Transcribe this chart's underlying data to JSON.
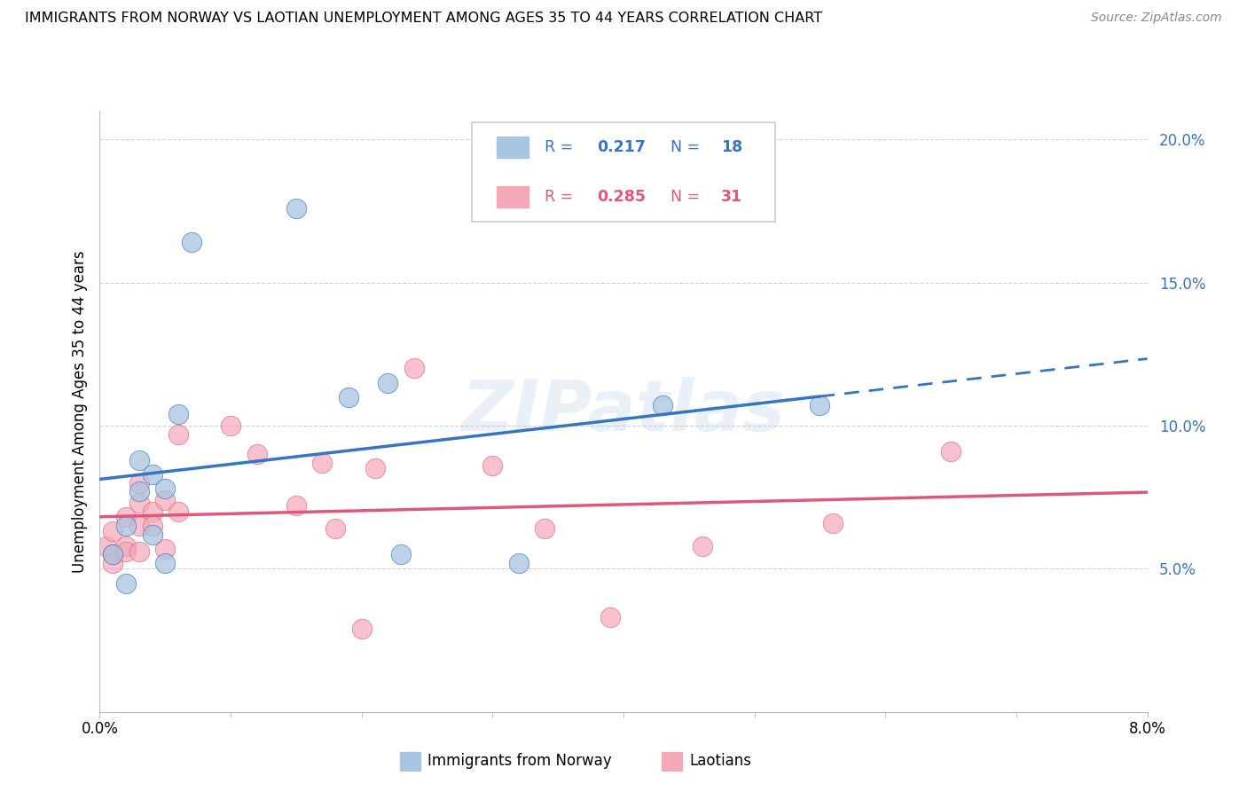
{
  "title": "IMMIGRANTS FROM NORWAY VS LAOTIAN UNEMPLOYMENT AMONG AGES 35 TO 44 YEARS CORRELATION CHART",
  "source": "Source: ZipAtlas.com",
  "ylabel": "Unemployment Among Ages 35 to 44 years",
  "xlim": [
    0.0,
    0.08
  ],
  "ylim": [
    0.0,
    0.21
  ],
  "yticks": [
    0.05,
    0.1,
    0.15,
    0.2
  ],
  "ytick_labels": [
    "5.0%",
    "10.0%",
    "15.0%",
    "20.0%"
  ],
  "norway_label": "Immigrants from Norway",
  "laotian_label": "Laotians",
  "norway_R": "0.217",
  "norway_N": "18",
  "laotian_R": "0.285",
  "laotian_N": "31",
  "norway_color": "#a8c4e0",
  "laotian_color": "#f4a8b8",
  "norway_line_color": "#3575c2",
  "laotian_line_color": "#e05878",
  "norway_scatter_x": [
    0.001,
    0.002,
    0.002,
    0.003,
    0.003,
    0.004,
    0.004,
    0.005,
    0.005,
    0.006,
    0.007,
    0.015,
    0.019,
    0.022,
    0.023,
    0.032,
    0.043,
    0.055
  ],
  "norway_scatter_y": [
    0.055,
    0.065,
    0.045,
    0.077,
    0.088,
    0.062,
    0.083,
    0.078,
    0.052,
    0.104,
    0.164,
    0.176,
    0.11,
    0.115,
    0.055,
    0.052,
    0.107,
    0.107
  ],
  "laotian_scatter_x": [
    0.0005,
    0.001,
    0.001,
    0.001,
    0.002,
    0.002,
    0.002,
    0.003,
    0.003,
    0.003,
    0.003,
    0.004,
    0.004,
    0.005,
    0.005,
    0.006,
    0.006,
    0.01,
    0.012,
    0.015,
    0.017,
    0.018,
    0.02,
    0.021,
    0.024,
    0.03,
    0.034,
    0.039,
    0.046,
    0.056,
    0.065
  ],
  "laotian_scatter_y": [
    0.058,
    0.055,
    0.052,
    0.063,
    0.058,
    0.068,
    0.056,
    0.065,
    0.056,
    0.08,
    0.073,
    0.07,
    0.065,
    0.074,
    0.057,
    0.07,
    0.097,
    0.1,
    0.09,
    0.072,
    0.087,
    0.064,
    0.029,
    0.085,
    0.12,
    0.086,
    0.064,
    0.033,
    0.058,
    0.066,
    0.091
  ],
  "watermark": "ZIPatlas",
  "background_color": "#ffffff",
  "grid_color": "#cccccc"
}
